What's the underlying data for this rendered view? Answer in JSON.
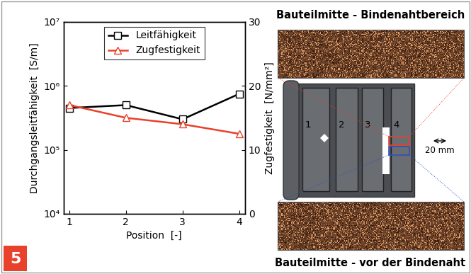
{
  "chart_data": {
    "type": "line",
    "x": [
      1,
      2,
      3,
      4
    ],
    "x_label": "Position  [-]",
    "y_label": "Durchgangsleitfähigkeit  [S/m]",
    "y2_label": "Zugfestigkeit  [N/mm²]",
    "xlim": [
      0.9,
      4.1
    ],
    "xticks": [
      1,
      2,
      3,
      4
    ],
    "log": "y",
    "ylim": [
      10000,
      10000000
    ],
    "yticks": [
      {
        "value": 10000,
        "label": "10⁴"
      },
      {
        "value": 100000,
        "label": "10⁵"
      },
      {
        "value": 1000000,
        "label": "10⁶"
      },
      {
        "value": 10000000,
        "label": "10⁷"
      }
    ],
    "y2lim": [
      0,
      30
    ],
    "y2ticks": [
      0,
      10,
      20,
      30
    ],
    "legend": "upper center",
    "series": [
      {
        "name": "Leitfähigkeit",
        "color": "#000000",
        "marker": "square",
        "line_style": "solid",
        "values": [
          450000,
          500000,
          300000,
          750000
        ]
      },
      {
        "name": "Zugfestigkeit",
        "color": "#e8412c",
        "marker": "triangle",
        "line_style": "solid",
        "axis": "y2",
        "values": [
          17,
          15,
          14,
          12.5
        ]
      }
    ]
  },
  "figure_number": "5",
  "schematic": {
    "top_caption": "Bauteilmitte - Bindenahtbereich",
    "bottom_caption": "Bauteilmitte - vor der Bindenaht",
    "regions": [
      "1",
      "2",
      "3",
      "4"
    ],
    "scale_bar": "20 mm"
  }
}
